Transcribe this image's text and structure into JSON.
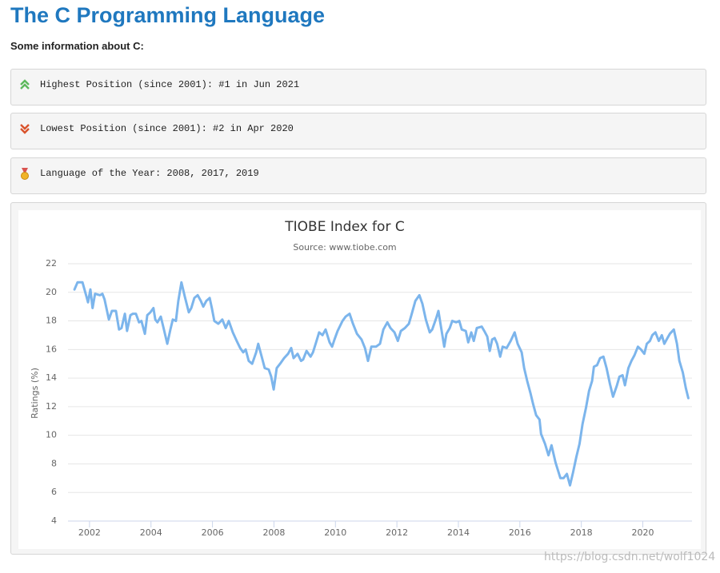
{
  "header": {
    "title": "The C Programming Language",
    "subtitle": "Some information about C:"
  },
  "info": [
    "Highest Position (since 2001): #1 in Jun 2021",
    "Lowest Position (since 2001): #2 in Apr 2020",
    "Language of the Year: 2008, 2017, 2019"
  ],
  "watermark": "https://blog.csdn.net/wolf1024",
  "chart_data": {
    "type": "line",
    "title": "TIOBE Index for C",
    "subtitle": "Source: www.tiobe.com",
    "y_label": "Ratings (%)",
    "color": "#7cb5ec",
    "grid": true,
    "xlim": [
      2001.3,
      2021.6
    ],
    "xticks": [
      2002,
      2004,
      2006,
      2008,
      2010,
      2012,
      2014,
      2016,
      2018,
      2020
    ],
    "ylim": [
      4,
      22
    ],
    "yticks": [
      4,
      6,
      8,
      10,
      12,
      14,
      16,
      18,
      20,
      22
    ],
    "x": [
      2001.51,
      2001.61,
      2001.77,
      2001.9,
      2001.95,
      2002.03,
      2002.1,
      2002.18,
      2002.34,
      2002.42,
      2002.49,
      2002.63,
      2002.73,
      2002.86,
      2002.96,
      2003.04,
      2003.15,
      2003.22,
      2003.33,
      2003.41,
      2003.51,
      2003.61,
      2003.69,
      2003.8,
      2003.88,
      2003.98,
      2004.08,
      2004.14,
      2004.21,
      2004.32,
      2004.42,
      2004.53,
      2004.63,
      2004.71,
      2004.81,
      2004.89,
      2004.99,
      2005.1,
      2005.23,
      2005.31,
      2005.41,
      2005.52,
      2005.62,
      2005.7,
      2005.8,
      2005.91,
      2005.98,
      2006.06,
      2006.19,
      2006.32,
      2006.43,
      2006.53,
      2006.66,
      2006.79,
      2006.9,
      2007.0,
      2007.08,
      2007.18,
      2007.29,
      2007.42,
      2007.49,
      2007.6,
      2007.7,
      2007.83,
      2007.91,
      2007.99,
      2008.09,
      2008.2,
      2008.33,
      2008.46,
      2008.56,
      2008.64,
      2008.77,
      2008.88,
      2008.95,
      2009.06,
      2009.19,
      2009.27,
      2009.37,
      2009.47,
      2009.58,
      2009.68,
      2009.81,
      2009.89,
      2009.97,
      2010.07,
      2010.23,
      2010.33,
      2010.46,
      2010.57,
      2010.7,
      2010.85,
      2010.96,
      2011.06,
      2011.17,
      2011.32,
      2011.45,
      2011.56,
      2011.69,
      2011.79,
      2011.92,
      2012.03,
      2012.13,
      2012.26,
      2012.39,
      2012.47,
      2012.6,
      2012.73,
      2012.83,
      2012.94,
      2013.07,
      2013.15,
      2013.28,
      2013.35,
      2013.41,
      2013.54,
      2013.61,
      2013.72,
      2013.8,
      2013.93,
      2014.03,
      2014.11,
      2014.24,
      2014.32,
      2014.42,
      2014.5,
      2014.6,
      2014.76,
      2014.84,
      2014.94,
      2015.02,
      2015.1,
      2015.18,
      2015.26,
      2015.36,
      2015.44,
      2015.57,
      2015.7,
      2015.83,
      2015.93,
      2016.06,
      2016.14,
      2016.24,
      2016.35,
      2016.43,
      2016.53,
      2016.64,
      2016.69,
      2016.82,
      2016.93,
      2017.03,
      2017.16,
      2017.32,
      2017.42,
      2017.53,
      2017.63,
      2017.73,
      2017.84,
      2017.94,
      2018.04,
      2018.15,
      2018.25,
      2018.35,
      2018.41,
      2018.51,
      2018.61,
      2018.72,
      2018.82,
      2018.93,
      2019.03,
      2019.16,
      2019.24,
      2019.34,
      2019.42,
      2019.53,
      2019.63,
      2019.73,
      2019.84,
      2019.94,
      2020.05,
      2020.13,
      2020.23,
      2020.31,
      2020.41,
      2020.52,
      2020.62,
      2020.7,
      2020.8,
      2020.88,
      2021.01,
      2021.11,
      2021.19,
      2021.3,
      2021.4,
      2021.48
    ],
    "values": [
      20.2,
      20.7,
      20.7,
      19.7,
      19.3,
      20.2,
      18.9,
      19.9,
      19.8,
      19.9,
      19.5,
      18.1,
      18.7,
      18.7,
      17.4,
      17.5,
      18.5,
      17.3,
      18.4,
      18.5,
      18.5,
      17.9,
      18.0,
      17.1,
      18.4,
      18.6,
      18.9,
      18.1,
      17.9,
      18.3,
      17.4,
      16.4,
      17.4,
      18.1,
      18.0,
      19.4,
      20.7,
      19.7,
      18.6,
      18.9,
      19.6,
      19.8,
      19.4,
      19.0,
      19.4,
      19.6,
      18.9,
      18.0,
      17.8,
      18.1,
      17.5,
      18.0,
      17.2,
      16.6,
      16.1,
      15.8,
      16.0,
      15.2,
      15.0,
      15.8,
      16.4,
      15.5,
      14.7,
      14.6,
      14.1,
      13.2,
      14.7,
      15.0,
      15.4,
      15.7,
      16.1,
      15.4,
      15.7,
      15.2,
      15.3,
      15.9,
      15.5,
      15.8,
      16.5,
      17.2,
      17.0,
      17.4,
      16.5,
      16.2,
      16.7,
      17.3,
      18.0,
      18.3,
      18.5,
      17.8,
      17.1,
      16.7,
      16.1,
      15.2,
      16.2,
      16.2,
      16.4,
      17.4,
      17.9,
      17.5,
      17.2,
      16.6,
      17.3,
      17.5,
      17.8,
      18.4,
      19.4,
      19.8,
      19.2,
      18.1,
      17.2,
      17.4,
      18.2,
      18.7,
      17.9,
      16.2,
      17.1,
      17.5,
      18.0,
      17.9,
      18.0,
      17.4,
      17.3,
      16.5,
      17.2,
      16.6,
      17.5,
      17.6,
      17.3,
      16.9,
      15.9,
      16.7,
      16.8,
      16.4,
      15.5,
      16.2,
      16.1,
      16.6,
      17.2,
      16.4,
      15.8,
      14.7,
      13.8,
      12.9,
      12.2,
      11.4,
      11.1,
      10.1,
      9.4,
      8.6,
      9.3,
      8.1,
      7.0,
      7.0,
      7.3,
      6.5,
      7.4,
      8.5,
      9.4,
      10.8,
      11.9,
      13.1,
      13.8,
      14.8,
      14.9,
      15.4,
      15.5,
      14.7,
      13.6,
      12.7,
      13.5,
      14.1,
      14.2,
      13.5,
      14.7,
      15.2,
      15.6,
      16.2,
      16.0,
      15.7,
      16.4,
      16.6,
      17.0,
      17.2,
      16.6,
      17.0,
      16.4,
      16.8,
      17.1,
      17.4,
      16.4,
      15.2,
      14.4,
      13.3,
      12.6
    ]
  }
}
